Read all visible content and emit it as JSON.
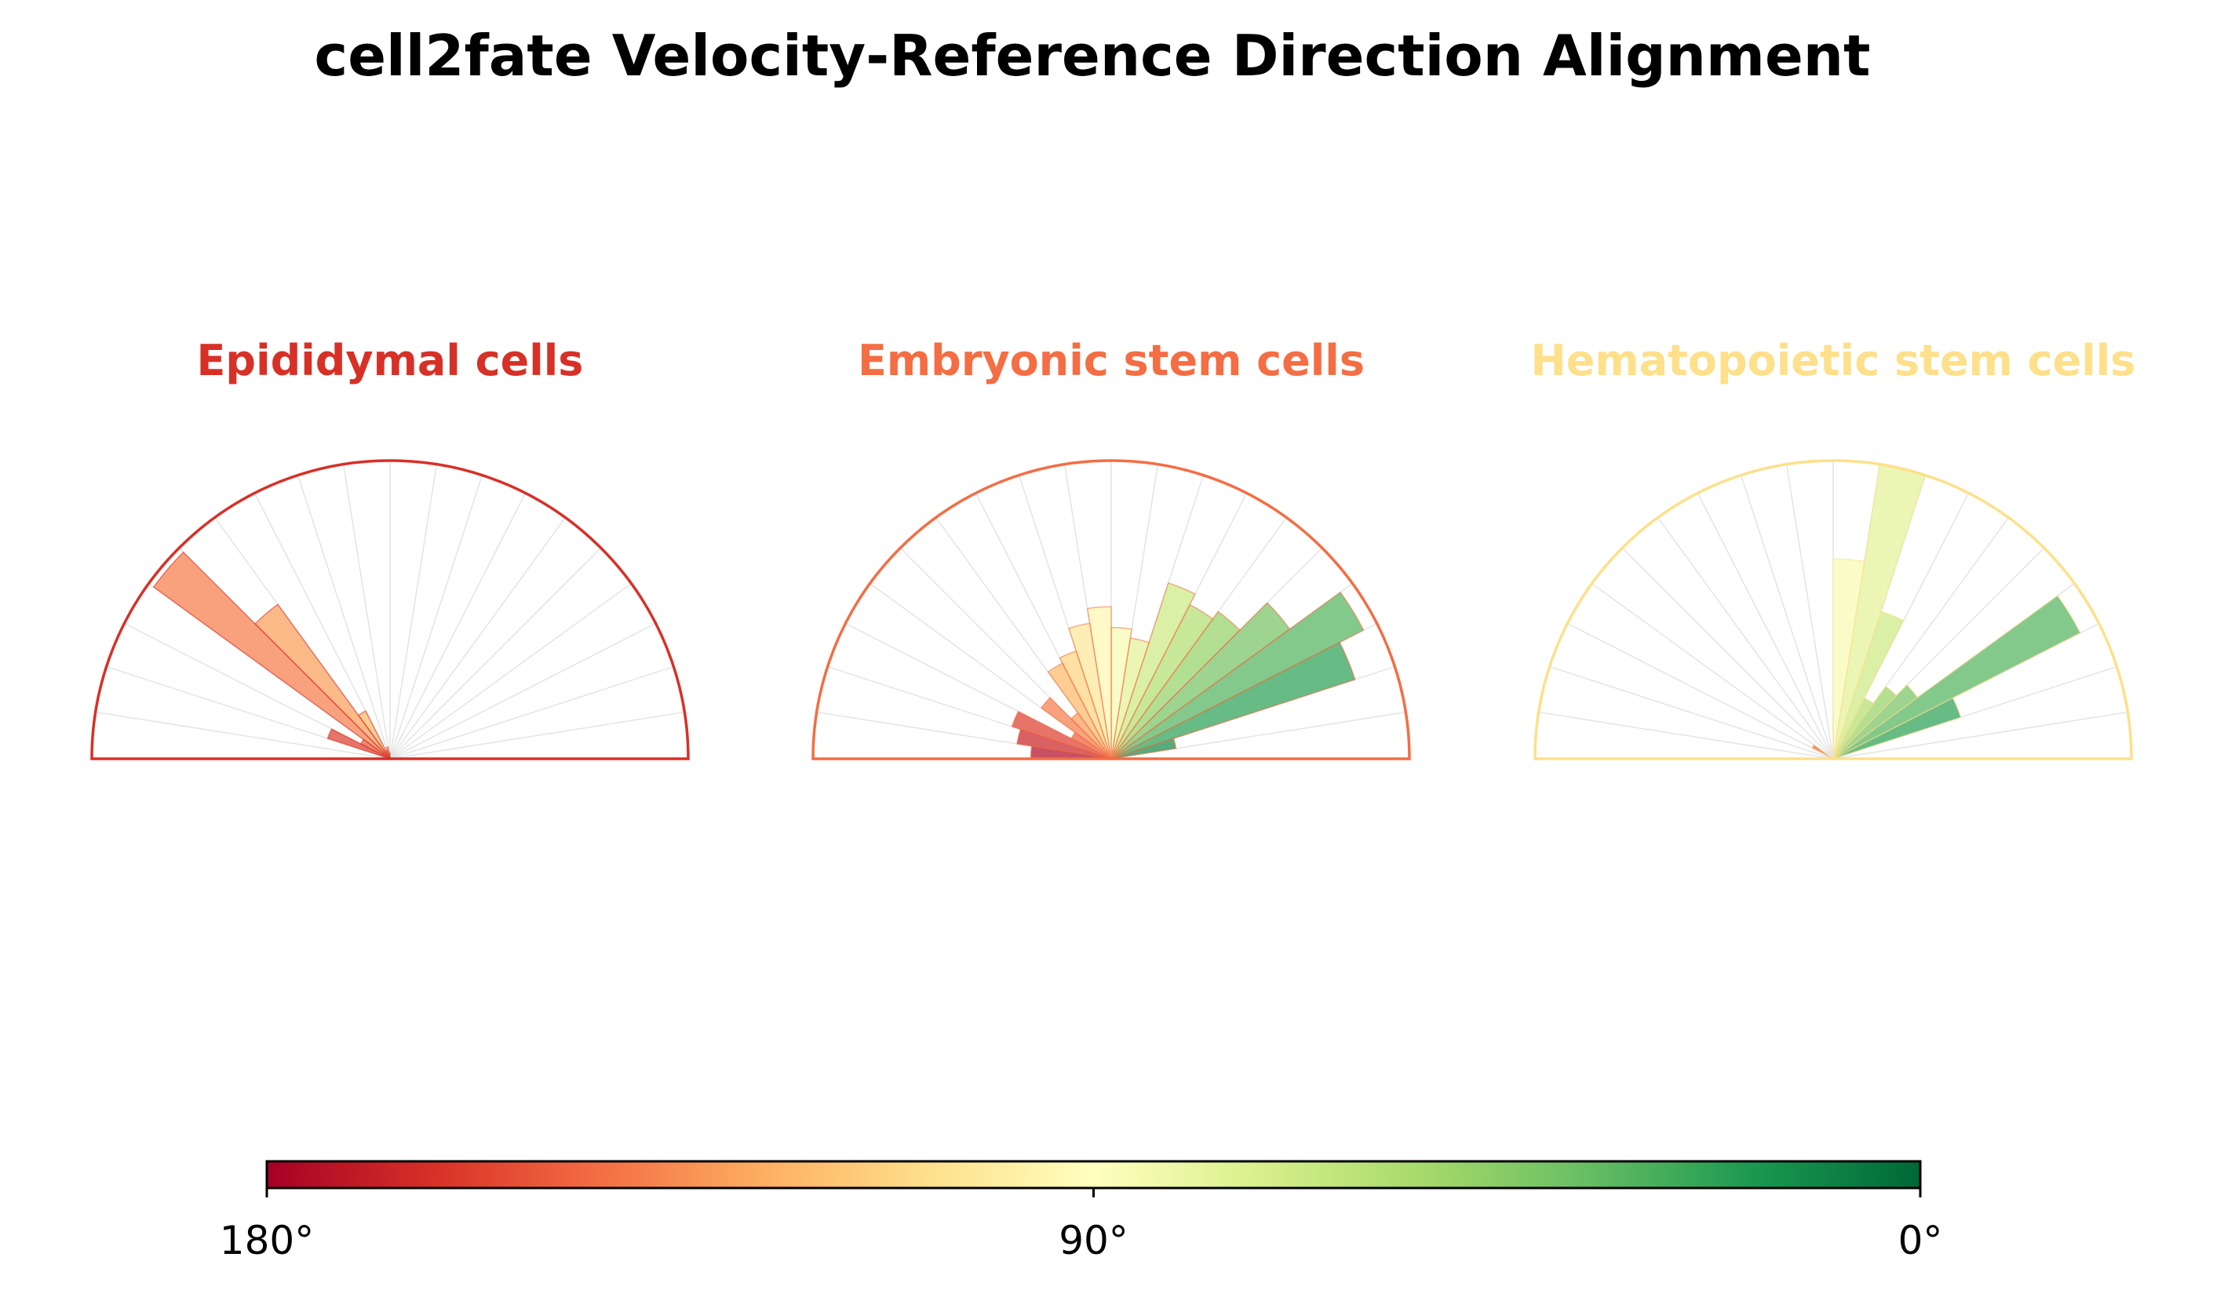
{
  "title": "cell2fate Velocity-Reference Direction Alignment",
  "chart_data": [
    {
      "type": "polar-bar",
      "title": "Epididymal cells",
      "title_color": "#d73027",
      "bin_width_deg": 9,
      "angles_deg": [
        4.5,
        13.5,
        22.5,
        31.5,
        40.5,
        49.5,
        58.5,
        67.5,
        76.5,
        85.5,
        94.5,
        103.5,
        112.5,
        121.5,
        130.5,
        139.5,
        148.5,
        157.5,
        166.5,
        175.5
      ],
      "radii": [
        0,
        0,
        0,
        0,
        0,
        0,
        0,
        0,
        0,
        0,
        0.02,
        0.04,
        0.03,
        0.18,
        0.64,
        0.98,
        0.11,
        0.22,
        0,
        0
      ],
      "rlim": [
        0,
        1
      ]
    },
    {
      "type": "polar-bar",
      "title": "Embryonic stem cells",
      "title_color": "#f46d43",
      "bin_width_deg": 9,
      "angles_deg": [
        4.5,
        13.5,
        22.5,
        31.5,
        40.5,
        49.5,
        58.5,
        67.5,
        76.5,
        85.5,
        94.5,
        103.5,
        112.5,
        121.5,
        130.5,
        139.5,
        148.5,
        157.5,
        166.5,
        175.5
      ],
      "radii": [
        0,
        0.22,
        0.86,
        0.95,
        0.74,
        0.61,
        0.58,
        0.62,
        0.41,
        0.44,
        0.51,
        0.46,
        0.38,
        0.36,
        0.19,
        0.29,
        0.15,
        0.35,
        0.32,
        0.27
      ],
      "rlim": [
        0,
        1
      ]
    },
    {
      "type": "polar-bar",
      "title": "Hematopoietic stem cells",
      "title_color": "#fee08b",
      "bin_width_deg": 9,
      "angles_deg": [
        4.5,
        13.5,
        22.5,
        31.5,
        40.5,
        49.5,
        58.5,
        67.5,
        76.5,
        85.5,
        94.5,
        103.5,
        112.5,
        121.5,
        130.5,
        139.5,
        148.5,
        157.5,
        166.5,
        175.5
      ],
      "radii": [
        0,
        0,
        0.45,
        0.93,
        0.35,
        0.3,
        0.23,
        0.52,
        1.0,
        0.67,
        0,
        0,
        0,
        0,
        0,
        0,
        0.08,
        0,
        0,
        0
      ],
      "rlim": [
        0,
        1
      ]
    },
    {
      "type": "colorbar",
      "ticks": [
        "180°",
        "90°",
        "0°"
      ],
      "range_deg": [
        180,
        0
      ],
      "colormap": "RdYlGn",
      "colormap_stops": [
        "#a50026",
        "#d73027",
        "#f46d43",
        "#fdae61",
        "#fee08b",
        "#ffffbf",
        "#d9ef8b",
        "#a6d96a",
        "#66bd63",
        "#1a9850",
        "#006837"
      ]
    }
  ]
}
